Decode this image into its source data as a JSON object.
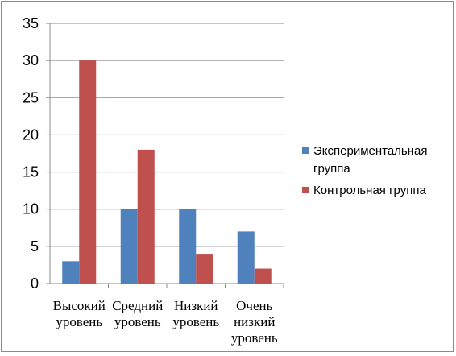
{
  "chart_data": {
    "type": "bar",
    "categories": [
      [
        "Высокий",
        "уровень"
      ],
      [
        "Средний",
        "уровень"
      ],
      [
        "Низкий",
        "уровень"
      ],
      [
        "Очень",
        "низкий",
        "уровень"
      ]
    ],
    "series": [
      {
        "name": [
          "Экспериментальная",
          "группа"
        ],
        "color": "#4F81BD",
        "values": [
          3,
          10,
          10,
          7
        ]
      },
      {
        "name": [
          "Контрольная группа"
        ],
        "color": "#C0504D",
        "values": [
          30,
          18,
          4,
          2
        ]
      }
    ],
    "yticks": [
      0,
      5,
      10,
      15,
      20,
      25,
      30,
      35
    ],
    "ylim": [
      0,
      35
    ],
    "grid": true,
    "legend": "right"
  }
}
